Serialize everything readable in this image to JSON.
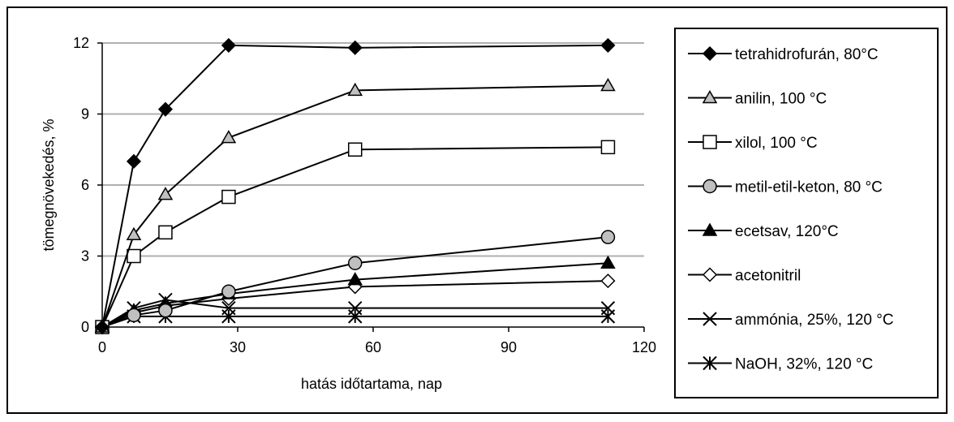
{
  "chart_data": {
    "type": "line",
    "title": "",
    "xlabel": "hatás időtartama, nap",
    "ylabel": "tömegnövekedés, %",
    "xlim": [
      0,
      120
    ],
    "ylim": [
      0,
      12
    ],
    "xticks": [
      0,
      30,
      60,
      90,
      120
    ],
    "yticks": [
      0,
      3,
      6,
      9,
      12
    ],
    "grid": "horizontal",
    "legend_position": "right",
    "series": [
      {
        "name": "tetrahidrofurán, 80°C",
        "marker": "diamond",
        "fill": "#000000",
        "x": [
          0,
          7,
          14,
          28,
          56,
          112
        ],
        "y": [
          0,
          7.0,
          9.2,
          11.9,
          11.8,
          11.9
        ]
      },
      {
        "name": "anilin, 100 °C",
        "marker": "triangle",
        "fill": "#c0c0c0",
        "x": [
          0,
          7,
          14,
          28,
          56,
          112
        ],
        "y": [
          0,
          3.9,
          5.6,
          8.0,
          10.0,
          10.2
        ]
      },
      {
        "name": "xilol, 100 °C",
        "marker": "square",
        "fill": "#ffffff",
        "x": [
          0,
          7,
          14,
          28,
          56,
          112
        ],
        "y": [
          0,
          3.0,
          4.0,
          5.5,
          7.5,
          7.6
        ]
      },
      {
        "name": "metil-etil-keton, 80 °C",
        "marker": "circle",
        "fill": "#c0c0c0",
        "x": [
          0,
          7,
          14,
          28,
          56,
          112
        ],
        "y": [
          0,
          0.5,
          0.7,
          1.5,
          2.7,
          3.8
        ]
      },
      {
        "name": "ecetsav, 120°C",
        "marker": "triangle",
        "fill": "#000000",
        "x": [
          0,
          7,
          14,
          28,
          56,
          112
        ],
        "y": [
          0,
          0.7,
          1.0,
          1.4,
          2.0,
          2.7
        ]
      },
      {
        "name": "acetonitril",
        "marker": "diamond",
        "fill": "#ffffff",
        "x": [
          0,
          7,
          14,
          28,
          56,
          112
        ],
        "y": [
          0,
          0.6,
          0.9,
          1.2,
          1.7,
          1.95
        ]
      },
      {
        "name": "ammónia, 25%, 120 °C",
        "marker": "x",
        "fill": "none",
        "x": [
          0,
          7,
          14,
          28,
          56,
          112
        ],
        "y": [
          0,
          0.8,
          1.15,
          0.8,
          0.8,
          0.8
        ]
      },
      {
        "name": "NaOH, 32%, 120 °C",
        "marker": "star",
        "fill": "none",
        "x": [
          0,
          7,
          14,
          28,
          56,
          112
        ],
        "y": [
          0,
          0.45,
          0.45,
          0.45,
          0.45,
          0.45
        ]
      }
    ]
  }
}
